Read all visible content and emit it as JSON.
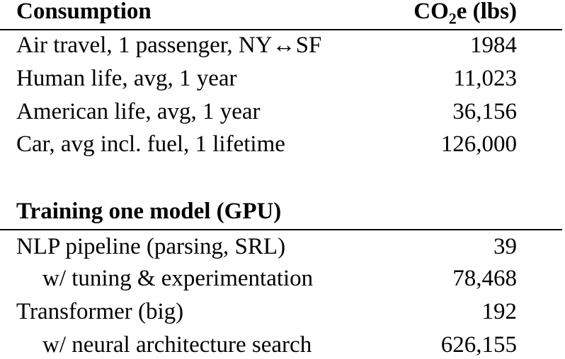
{
  "table": {
    "header1": {
      "left": "Consumption",
      "right_prefix": "CO",
      "right_sub": "2",
      "right_suffix": "e (lbs)"
    },
    "consumption_rows": [
      {
        "label": "Air travel, 1 passenger, NY↔SF",
        "value": "1984"
      },
      {
        "label": "Human life, avg, 1 year",
        "value": "11,023"
      },
      {
        "label": "American life, avg, 1 year",
        "value": "36,156"
      },
      {
        "label": "Car, avg incl. fuel, 1 lifetime",
        "value": "126,000"
      }
    ],
    "header2": {
      "left": "Training one model (GPU)"
    },
    "training_rows": [
      {
        "label": "NLP pipeline (parsing, SRL)",
        "value": "39"
      },
      {
        "label": "w/ tuning & experimentation",
        "value": "78,468"
      },
      {
        "label": "Transformer (big)",
        "value": "192"
      },
      {
        "label": "w/ neural architecture search",
        "value": "626,155"
      }
    ]
  }
}
